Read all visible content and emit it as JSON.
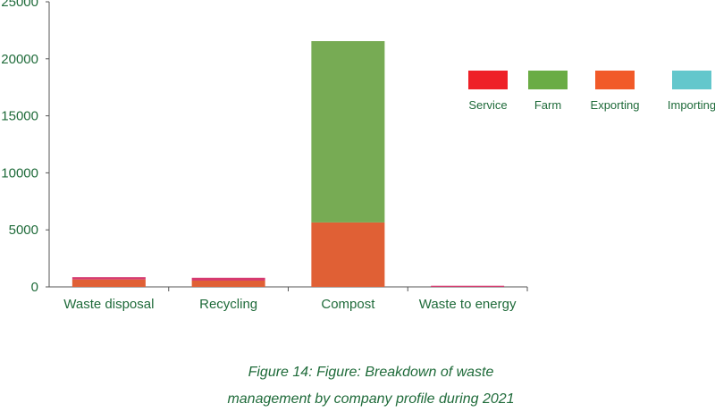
{
  "caption_line1": "Figure 14: Figure: Breakdown of waste",
  "caption_line2": "management by company profile during 2021",
  "chart_data": {
    "type": "bar",
    "stacked": true,
    "categories": [
      "Waste disposal",
      "Recycling",
      "Compost",
      "Waste to energy"
    ],
    "series": [
      {
        "name": "Exporting",
        "color": "#e06035",
        "values": [
          650,
          550,
          5650,
          0
        ]
      },
      {
        "name": "Farm",
        "color": "#77ab54",
        "values": [
          0,
          0,
          15900,
          0
        ]
      },
      {
        "name": "Importing",
        "color": "#63c7cc",
        "values": [
          0,
          0,
          0,
          0
        ]
      },
      {
        "name": "Service",
        "color": "#d63a6f",
        "values": [
          200,
          250,
          0,
          100
        ]
      }
    ],
    "legend": [
      {
        "name": "Service",
        "color": "#ee2027"
      },
      {
        "name": "Farm",
        "color": "#6aac45"
      },
      {
        "name": "Exporting",
        "color": "#f15a29"
      },
      {
        "name": "Importing",
        "color": "#63c7cc"
      }
    ],
    "ylim": [
      0,
      25000
    ],
    "yticks": [
      0,
      5000,
      10000,
      15000,
      20000,
      25000
    ],
    "grid": false,
    "legend_position": "right"
  }
}
